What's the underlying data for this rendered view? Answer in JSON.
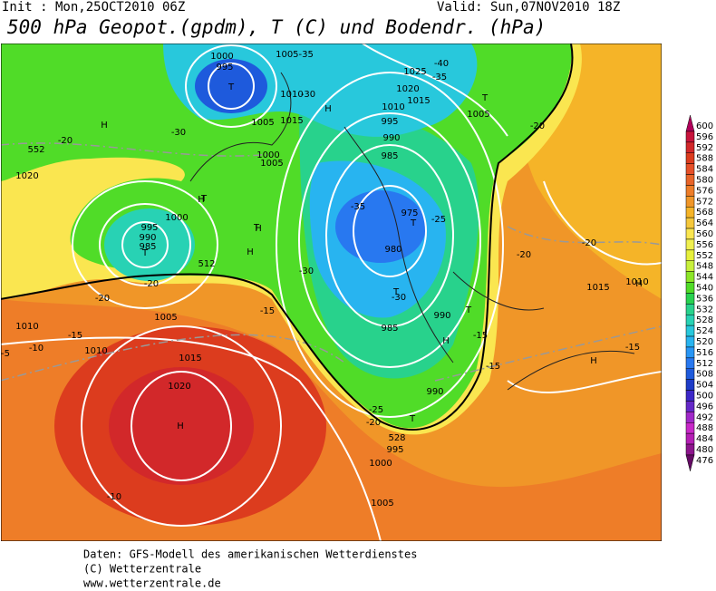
{
  "header": {
    "init": "Init : Mon,25OCT2010 06Z",
    "valid": "Valid: Sun,07NOV2010 18Z",
    "title": "500 hPa Geopot.(gpdm), T (C) und Bodendr. (hPa)"
  },
  "legend": {
    "labels": [
      600,
      596,
      592,
      588,
      584,
      580,
      576,
      572,
      568,
      564,
      560,
      556,
      552,
      548,
      544,
      540,
      536,
      532,
      528,
      524,
      520,
      516,
      512,
      508,
      504,
      500,
      496,
      492,
      488,
      484,
      480,
      476
    ],
    "colors": [
      "#b0005a",
      "#c8143c",
      "#d2282a",
      "#dc3c1e",
      "#e65028",
      "#e86428",
      "#ee7d28",
      "#f09628",
      "#f5b428",
      "#f5c83c",
      "#fae650",
      "#f0f050",
      "#e6f03c",
      "#c8f03c",
      "#8ce628",
      "#50dc28",
      "#28d250",
      "#28d28c",
      "#28d2b4",
      "#28c8dc",
      "#28b4f0",
      "#2896f5",
      "#2878f0",
      "#1e5adc",
      "#1e3cc8",
      "#3c28c8",
      "#6428c8",
      "#a028c8",
      "#c828c8",
      "#b41eb4",
      "#8c148c",
      "#640a64"
    ]
  },
  "map_labels": [
    "1000",
    "995",
    "T",
    "1005-35",
    "1010",
    "1015",
    "1005",
    "H",
    "-30",
    "1025",
    "-40",
    "1020",
    "-35",
    "1015",
    "1010",
    "T",
    "1005",
    "H",
    "-20",
    "1020",
    "-30",
    "1005",
    "1000",
    "995",
    "990",
    "985",
    "-35",
    "975",
    "T",
    "-25",
    "980",
    "T",
    "-30",
    "990",
    "985",
    "H",
    "T",
    "-15",
    "1000",
    "995",
    "990",
    "985",
    "T",
    "H",
    "H",
    "-20",
    "-10",
    "-15",
    "1010",
    "1015",
    "1020",
    "H",
    "-10",
    "1005",
    "1010",
    "-25",
    "T",
    "990",
    "-20",
    "995",
    "1000",
    "1005",
    "-15",
    "1015",
    "1010",
    "H",
    "H",
    "-15",
    "-20",
    "T",
    "-20",
    "T",
    "-30",
    "-20",
    "H",
    "-15",
    "-20",
    "-5",
    "552",
    "512",
    "528"
  ],
  "footer": [
    "Daten: GFS-Modell des amerikanischen Wetterdienstes",
    "(C) Wetterzentrale",
    "www.wetterzentrale.de"
  ]
}
